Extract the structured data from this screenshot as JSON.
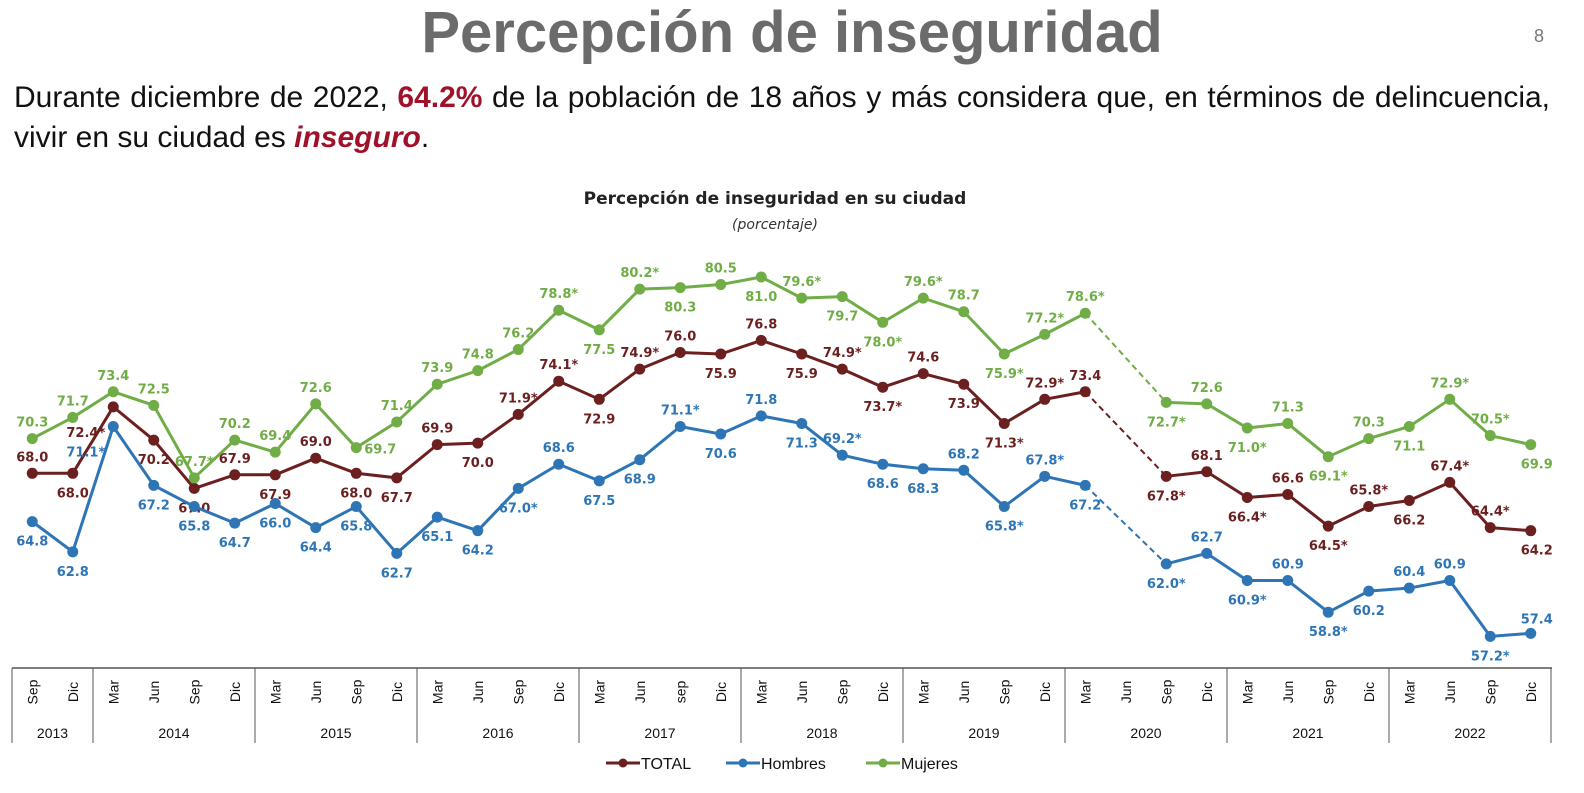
{
  "header": {
    "title": "Percepción de inseguridad",
    "page_number": "8",
    "lead_before": "Durante diciembre de 2022, ",
    "lead_highlight": "64.2%",
    "lead_middle": " de la población de 18 años y más considera que, en términos de delincuencia, vivir en su ciudad es ",
    "lead_emphasis": "inseguro",
    "lead_end": "."
  },
  "chart_data": {
    "type": "line",
    "title": "Percepción de inseguridad en su ciudad",
    "subtitle": "(porcentaje)",
    "x": [
      {
        "period": "Sep",
        "year": "2013"
      },
      {
        "period": "Dic",
        "year": "2013"
      },
      {
        "period": "Mar",
        "year": "2014"
      },
      {
        "period": "Jun",
        "year": "2014"
      },
      {
        "period": "Sep",
        "year": "2014"
      },
      {
        "period": "Dic",
        "year": "2014"
      },
      {
        "period": "Mar",
        "year": "2015"
      },
      {
        "period": "Jun",
        "year": "2015"
      },
      {
        "period": "Sep",
        "year": "2015"
      },
      {
        "period": "Dic",
        "year": "2015"
      },
      {
        "period": "Mar",
        "year": "2016"
      },
      {
        "period": "Jun",
        "year": "2016"
      },
      {
        "period": "Sep",
        "year": "2016"
      },
      {
        "period": "Dic",
        "year": "2016"
      },
      {
        "period": "Mar",
        "year": "2017"
      },
      {
        "period": "Jun",
        "year": "2017"
      },
      {
        "period": "sep",
        "year": "2017"
      },
      {
        "period": "Dic",
        "year": "2017"
      },
      {
        "period": "Mar",
        "year": "2018"
      },
      {
        "period": "Jun",
        "year": "2018"
      },
      {
        "period": "Sep",
        "year": "2018"
      },
      {
        "period": "Dic",
        "year": "2018"
      },
      {
        "period": "Mar",
        "year": "2019"
      },
      {
        "period": "Jun",
        "year": "2019"
      },
      {
        "period": "Sep",
        "year": "2019"
      },
      {
        "period": "Dic",
        "year": "2019"
      },
      {
        "period": "Mar",
        "year": "2020"
      },
      {
        "period": "Jun",
        "year": "2020"
      },
      {
        "period": "Sep",
        "year": "2020"
      },
      {
        "period": "Dic",
        "year": "2020"
      },
      {
        "period": "Mar",
        "year": "2021"
      },
      {
        "period": "Jun",
        "year": "2021"
      },
      {
        "period": "Sep",
        "year": "2021"
      },
      {
        "period": "Dic",
        "year": "2021"
      },
      {
        "period": "Mar",
        "year": "2022"
      },
      {
        "period": "Jun",
        "year": "2022"
      },
      {
        "period": "Sep",
        "year": "2022"
      },
      {
        "period": "Dic",
        "year": "2022"
      }
    ],
    "years": [
      "2013",
      "2014",
      "2015",
      "2016",
      "2017",
      "2018",
      "2019",
      "2020",
      "2021",
      "2022"
    ],
    "series": [
      {
        "name": "TOTAL",
        "color": "#6b1f1f",
        "values": [
          68.0,
          68.0,
          72.4,
          70.2,
          67.0,
          67.9,
          67.9,
          69.0,
          68.0,
          67.7,
          69.9,
          70.0,
          71.9,
          74.1,
          72.9,
          74.9,
          76.0,
          75.9,
          76.8,
          75.9,
          74.9,
          73.7,
          74.6,
          73.9,
          71.3,
          72.9,
          73.4,
          null,
          67.8,
          68.1,
          66.4,
          66.6,
          64.5,
          65.8,
          66.2,
          67.4,
          64.4,
          64.2
        ],
        "labels": [
          "68.0",
          "68.0",
          "72.4*",
          "70.2",
          "67.0",
          "67.9",
          "67.9",
          "69.0",
          "68.0",
          "67.7",
          "69.9",
          "70.0",
          "71.9*",
          "74.1*",
          "72.9",
          "74.9*",
          "76.0",
          "75.9",
          "76.8",
          "75.9",
          "74.9*",
          "73.7*",
          "74.6",
          "73.9",
          "71.3*",
          "72.9*",
          "73.4",
          null,
          "67.8*",
          "68.1",
          "66.4*",
          "66.6",
          "64.5*",
          "65.8*",
          "66.2",
          "67.4*",
          "64.4*",
          "64.2"
        ]
      },
      {
        "name": "Hombres",
        "color": "#2e75b6",
        "values": [
          64.8,
          62.8,
          71.1,
          67.2,
          65.8,
          64.7,
          66.0,
          64.4,
          65.8,
          62.7,
          65.1,
          64.2,
          67.0,
          68.6,
          67.5,
          68.9,
          71.1,
          70.6,
          71.8,
          71.3,
          69.2,
          68.6,
          68.3,
          68.2,
          65.8,
          67.8,
          67.2,
          null,
          62.0,
          62.7,
          60.9,
          60.9,
          58.8,
          60.2,
          60.4,
          60.9,
          57.2,
          57.4
        ],
        "labels": [
          "64.8",
          "62.8",
          "71.1*",
          "67.2",
          "65.8",
          "64.7",
          "66.0",
          "64.4",
          "65.8",
          "62.7",
          "65.1",
          "64.2",
          "67.0*",
          "68.6",
          "67.5",
          "68.9",
          "71.1*",
          "70.6",
          "71.8",
          "71.3",
          "69.2*",
          "68.6",
          "68.3",
          "68.2",
          "65.8*",
          "67.8*",
          "67.2",
          null,
          "62.0*",
          "62.7",
          "60.9*",
          "60.9",
          "58.8*",
          "60.2",
          "60.4",
          "60.9",
          "57.2*",
          "57.4"
        ]
      },
      {
        "name": "Mujeres",
        "color": "#70ad47",
        "values": [
          70.3,
          71.7,
          73.4,
          72.5,
          67.7,
          70.2,
          69.4,
          72.6,
          69.7,
          71.4,
          73.9,
          74.8,
          76.2,
          78.8,
          77.5,
          80.2,
          80.3,
          80.5,
          81.0,
          79.6,
          79.7,
          78.0,
          79.6,
          78.7,
          75.9,
          77.2,
          78.6,
          null,
          72.7,
          72.6,
          71.0,
          71.3,
          69.1,
          70.3,
          71.1,
          72.9,
          70.5,
          69.9
        ],
        "labels": [
          "70.3",
          "71.7",
          "73.4",
          "72.5",
          "67.7*",
          "70.2",
          "69.4",
          "72.6",
          "69.7",
          "71.4",
          "73.9",
          "74.8",
          "76.2",
          "78.8*",
          "77.5",
          "80.2*",
          "80.3",
          "80.5",
          "81.0",
          "79.6*",
          "79.7",
          "78.0*",
          "79.6*",
          "78.7",
          "75.9*",
          "77.2*",
          "78.6*",
          null,
          "72.7*",
          "72.6",
          "71.0*",
          "71.3",
          "69.1*",
          "70.3",
          "71.1",
          "72.9*",
          "70.5*",
          "69.9"
        ]
      }
    ],
    "gap_style": "dashed",
    "legend_position": "bottom",
    "grid": false
  }
}
